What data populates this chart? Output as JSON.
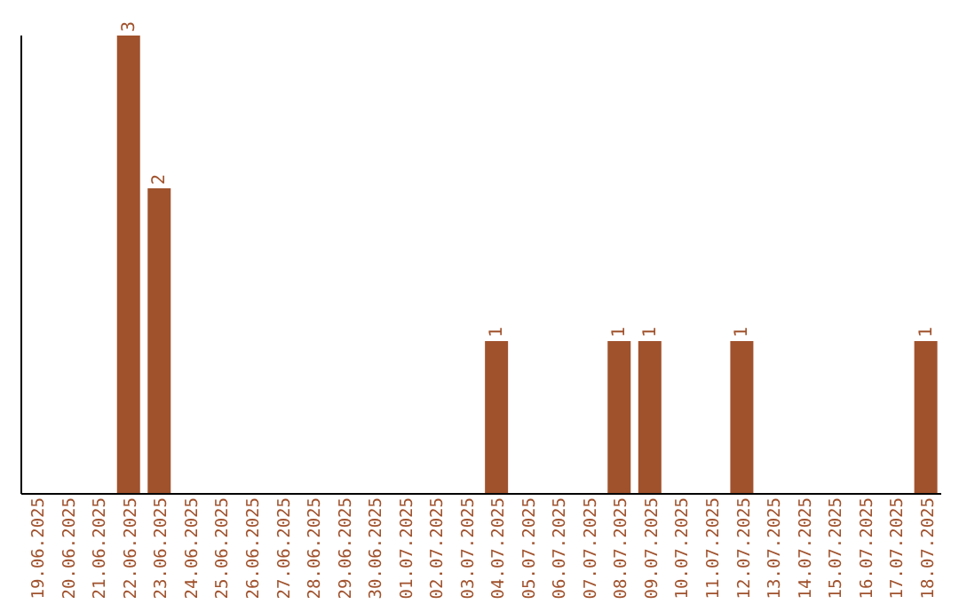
{
  "chart_data": {
    "type": "bar",
    "categories": [
      "19.06.2025",
      "20.06.2025",
      "21.06.2025",
      "22.06.2025",
      "23.06.2025",
      "24.06.2025",
      "25.06.2025",
      "26.06.2025",
      "27.06.2025",
      "28.06.2025",
      "29.06.2025",
      "30.06.2025",
      "01.07.2025",
      "02.07.2025",
      "03.07.2025",
      "04.07.2025",
      "05.07.2025",
      "06.07.2025",
      "07.07.2025",
      "08.07.2025",
      "09.07.2025",
      "10.07.2025",
      "11.07.2025",
      "12.07.2025",
      "13.07.2025",
      "14.07.2025",
      "15.07.2025",
      "16.07.2025",
      "17.07.2025",
      "18.07.2025"
    ],
    "values": [
      null,
      null,
      null,
      3,
      2,
      null,
      null,
      null,
      null,
      null,
      null,
      null,
      null,
      null,
      null,
      1,
      null,
      null,
      null,
      1,
      1,
      null,
      null,
      1,
      null,
      null,
      null,
      null,
      null,
      1
    ],
    "color": "#a0522d",
    "data_labels": true,
    "grid": false,
    "legend": false
  }
}
